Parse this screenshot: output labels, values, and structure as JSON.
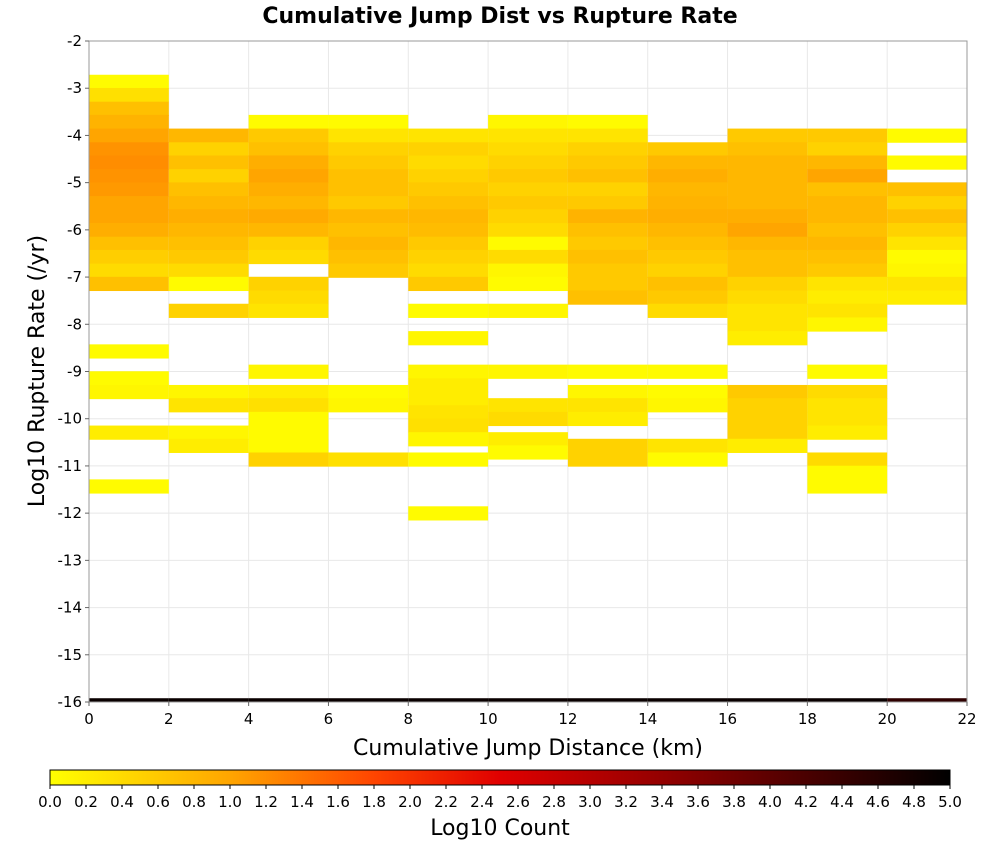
{
  "chart_data": {
    "type": "heatmap",
    "title": "Cumulative Jump Dist vs Rupture Rate",
    "xlabel": "Cumulative Jump Distance (km)",
    "ylabel": "Log10 Rupture Rate (/yr)",
    "xlim": [
      0,
      22
    ],
    "ylim": [
      -16,
      -2
    ],
    "x_ticks": [
      0,
      2,
      4,
      6,
      8,
      10,
      12,
      14,
      16,
      18,
      20,
      22
    ],
    "y_ticks": [
      -2,
      -3,
      -4,
      -5,
      -6,
      -7,
      -8,
      -9,
      -10,
      -11,
      -12,
      -13,
      -14,
      -15,
      -16
    ],
    "x_bin_width": 2,
    "y_bin_height": 0.29,
    "grid": true,
    "colorbar": {
      "label": "Log10 Count",
      "range": [
        0.0,
        5.0
      ],
      "ticks": [
        "0.0",
        "0.2",
        "0.4",
        "0.6",
        "0.8",
        "1.0",
        "1.2",
        "1.4",
        "1.6",
        "1.8",
        "2.0",
        "2.2",
        "2.4",
        "2.6",
        "2.8",
        "3.0",
        "3.2",
        "3.4",
        "3.6",
        "3.8",
        "4.0",
        "4.2",
        "4.4",
        "4.6",
        "4.8",
        "5.0"
      ],
      "colors": [
        "#ffff00",
        "#ffa500",
        "#ff4500",
        "#e00000",
        "#8b0000",
        "#000000"
      ]
    },
    "columns": [
      {
        "x": 1,
        "cells": [
          [
            -2.86,
            0.05
          ],
          [
            -3.14,
            0.35
          ],
          [
            -3.43,
            0.7
          ],
          [
            -3.71,
            0.85
          ],
          [
            -4.0,
            1.0
          ],
          [
            -4.29,
            1.15
          ],
          [
            -4.57,
            1.2
          ],
          [
            -4.86,
            1.15
          ],
          [
            -5.14,
            1.1
          ],
          [
            -5.43,
            1.0
          ],
          [
            -5.71,
            1.0
          ],
          [
            -6.0,
            0.9
          ],
          [
            -6.29,
            0.7
          ],
          [
            -6.57,
            0.55
          ],
          [
            -6.86,
            0.4
          ],
          [
            -7.14,
            0.7
          ],
          [
            -8.57,
            0.05
          ],
          [
            -9.14,
            0.05
          ],
          [
            -9.43,
            0.1
          ],
          [
            -10.29,
            0.2
          ],
          [
            -11.43,
            0.05
          ]
        ]
      },
      {
        "x": 3,
        "cells": [
          [
            -4.0,
            0.8
          ],
          [
            -4.29,
            0.5
          ],
          [
            -4.57,
            0.7
          ],
          [
            -4.86,
            0.5
          ],
          [
            -5.14,
            0.7
          ],
          [
            -5.43,
            0.8
          ],
          [
            -5.71,
            0.9
          ],
          [
            -6.0,
            0.8
          ],
          [
            -6.29,
            0.7
          ],
          [
            -6.57,
            0.6
          ],
          [
            -6.86,
            0.4
          ],
          [
            -7.14,
            0.05
          ],
          [
            -7.71,
            0.5
          ],
          [
            -9.43,
            0.1
          ],
          [
            -9.71,
            0.3
          ],
          [
            -10.29,
            0.1
          ],
          [
            -10.57,
            0.2
          ]
        ]
      },
      {
        "x": 5,
        "cells": [
          [
            -3.71,
            0.05
          ],
          [
            -4.0,
            0.6
          ],
          [
            -4.29,
            0.7
          ],
          [
            -4.57,
            0.9
          ],
          [
            -4.86,
            1.0
          ],
          [
            -5.14,
            0.9
          ],
          [
            -5.43,
            0.8
          ],
          [
            -5.71,
            0.95
          ],
          [
            -6.0,
            0.8
          ],
          [
            -6.29,
            0.5
          ],
          [
            -6.57,
            0.4
          ],
          [
            -7.14,
            0.5
          ],
          [
            -7.43,
            0.4
          ],
          [
            -7.71,
            0.3
          ],
          [
            -9.0,
            0.1
          ],
          [
            -9.43,
            0.2
          ],
          [
            -9.71,
            0.35
          ],
          [
            -10.0,
            0.05
          ],
          [
            -10.29,
            0.05
          ],
          [
            -10.57,
            0.05
          ],
          [
            -10.86,
            0.5
          ]
        ]
      },
      {
        "x": 7,
        "cells": [
          [
            -3.71,
            0.05
          ],
          [
            -4.0,
            0.3
          ],
          [
            -4.29,
            0.5
          ],
          [
            -4.57,
            0.6
          ],
          [
            -4.86,
            0.7
          ],
          [
            -5.14,
            0.7
          ],
          [
            -5.43,
            0.6
          ],
          [
            -5.71,
            0.8
          ],
          [
            -6.0,
            0.7
          ],
          [
            -6.29,
            0.8
          ],
          [
            -6.57,
            0.7
          ],
          [
            -6.86,
            0.6
          ],
          [
            -9.43,
            0.05
          ],
          [
            -9.71,
            0.1
          ],
          [
            -10.86,
            0.35
          ]
        ]
      },
      {
        "x": 9,
        "cells": [
          [
            -4.0,
            0.3
          ],
          [
            -4.29,
            0.5
          ],
          [
            -4.57,
            0.4
          ],
          [
            -4.86,
            0.5
          ],
          [
            -5.14,
            0.6
          ],
          [
            -5.43,
            0.7
          ],
          [
            -5.71,
            0.8
          ],
          [
            -6.0,
            0.75
          ],
          [
            -6.29,
            0.6
          ],
          [
            -6.57,
            0.5
          ],
          [
            -6.86,
            0.4
          ],
          [
            -7.14,
            0.6
          ],
          [
            -7.71,
            0.05
          ],
          [
            -8.29,
            0.1
          ],
          [
            -9.0,
            0.1
          ],
          [
            -9.29,
            0.2
          ],
          [
            -9.57,
            0.2
          ],
          [
            -9.86,
            0.3
          ],
          [
            -10.14,
            0.35
          ],
          [
            -10.43,
            0.1
          ],
          [
            -10.86,
            0.05
          ],
          [
            -12.0,
            0.05
          ]
        ]
      },
      {
        "x": 11,
        "cells": [
          [
            -3.71,
            0.1
          ],
          [
            -4.0,
            0.3
          ],
          [
            -4.29,
            0.4
          ],
          [
            -4.57,
            0.5
          ],
          [
            -4.86,
            0.6
          ],
          [
            -5.14,
            0.5
          ],
          [
            -5.43,
            0.6
          ],
          [
            -5.71,
            0.5
          ],
          [
            -6.0,
            0.4
          ],
          [
            -6.29,
            0.05
          ],
          [
            -6.57,
            0.4
          ],
          [
            -6.86,
            0.1
          ],
          [
            -7.14,
            0.05
          ],
          [
            -7.71,
            0.1
          ],
          [
            -9.0,
            0.1
          ],
          [
            -9.71,
            0.3
          ],
          [
            -10.0,
            0.4
          ],
          [
            -10.43,
            0.2
          ],
          [
            -10.71,
            0.05
          ]
        ]
      },
      {
        "x": 13,
        "cells": [
          [
            -3.71,
            0.05
          ],
          [
            -4.0,
            0.3
          ],
          [
            -4.29,
            0.5
          ],
          [
            -4.57,
            0.6
          ],
          [
            -4.86,
            0.7
          ],
          [
            -5.14,
            0.5
          ],
          [
            -5.43,
            0.6
          ],
          [
            -5.71,
            0.85
          ],
          [
            -6.0,
            0.7
          ],
          [
            -6.29,
            0.6
          ],
          [
            -6.57,
            0.7
          ],
          [
            -6.86,
            0.6
          ],
          [
            -7.14,
            0.6
          ],
          [
            -7.43,
            0.7
          ],
          [
            -9.0,
            0.05
          ],
          [
            -9.43,
            0.1
          ],
          [
            -9.71,
            0.3
          ],
          [
            -10.0,
            0.2
          ],
          [
            -10.57,
            0.5
          ],
          [
            -10.86,
            0.5
          ]
        ]
      },
      {
        "x": 15,
        "cells": [
          [
            -4.29,
            0.6
          ],
          [
            -4.57,
            0.8
          ],
          [
            -4.86,
            0.9
          ],
          [
            -5.14,
            0.8
          ],
          [
            -5.43,
            0.85
          ],
          [
            -5.71,
            0.9
          ],
          [
            -6.0,
            0.8
          ],
          [
            -6.29,
            0.7
          ],
          [
            -6.57,
            0.6
          ],
          [
            -6.86,
            0.5
          ],
          [
            -7.14,
            0.7
          ],
          [
            -7.43,
            0.6
          ],
          [
            -7.71,
            0.4
          ],
          [
            -9.0,
            0.05
          ],
          [
            -9.43,
            0.05
          ],
          [
            -9.71,
            0.1
          ],
          [
            -10.57,
            0.3
          ],
          [
            -10.86,
            0.05
          ]
        ]
      },
      {
        "x": 17,
        "cells": [
          [
            -4.0,
            0.6
          ],
          [
            -4.29,
            0.7
          ],
          [
            -4.57,
            0.8
          ],
          [
            -4.86,
            0.8
          ],
          [
            -5.14,
            0.8
          ],
          [
            -5.43,
            0.8
          ],
          [
            -5.71,
            0.9
          ],
          [
            -6.0,
            1.0
          ],
          [
            -6.29,
            0.8
          ],
          [
            -6.57,
            0.7
          ],
          [
            -6.86,
            0.7
          ],
          [
            -7.14,
            0.5
          ],
          [
            -7.43,
            0.4
          ],
          [
            -7.71,
            0.3
          ],
          [
            -8.0,
            0.3
          ],
          [
            -8.29,
            0.2
          ],
          [
            -9.43,
            0.6
          ],
          [
            -9.71,
            0.5
          ],
          [
            -10.0,
            0.5
          ],
          [
            -10.29,
            0.5
          ],
          [
            -10.57,
            0.2
          ]
        ]
      },
      {
        "x": 19,
        "cells": [
          [
            -4.0,
            0.6
          ],
          [
            -4.29,
            0.5
          ],
          [
            -4.57,
            0.8
          ],
          [
            -4.86,
            1.0
          ],
          [
            -5.14,
            0.7
          ],
          [
            -5.43,
            0.8
          ],
          [
            -5.71,
            0.8
          ],
          [
            -6.0,
            0.7
          ],
          [
            -6.29,
            0.8
          ],
          [
            -6.57,
            0.7
          ],
          [
            -6.86,
            0.6
          ],
          [
            -7.14,
            0.3
          ],
          [
            -7.43,
            0.2
          ],
          [
            -7.71,
            0.3
          ],
          [
            -8.0,
            0.1
          ],
          [
            -9.0,
            0.05
          ],
          [
            -9.43,
            0.4
          ],
          [
            -9.71,
            0.3
          ],
          [
            -10.0,
            0.3
          ],
          [
            -10.29,
            0.2
          ],
          [
            -10.86,
            0.4
          ],
          [
            -11.14,
            0.05
          ],
          [
            -11.43,
            0.05
          ]
        ]
      },
      {
        "x": 21,
        "cells": [
          [
            -4.0,
            0.05
          ],
          [
            -4.57,
            0.05
          ],
          [
            -5.14,
            0.7
          ],
          [
            -5.43,
            0.5
          ],
          [
            -5.71,
            0.7
          ],
          [
            -6.0,
            0.5
          ],
          [
            -6.29,
            0.3
          ],
          [
            -6.57,
            0.05
          ],
          [
            -6.86,
            0.1
          ],
          [
            -7.14,
            0.3
          ],
          [
            -7.43,
            0.2
          ]
        ]
      }
    ],
    "bottom_strip": {
      "y": -16,
      "values": [
        4.9,
        4.9,
        4.9,
        4.9,
        4.9,
        4.9,
        4.9,
        4.9,
        4.9,
        4.9,
        4.5
      ]
    }
  }
}
